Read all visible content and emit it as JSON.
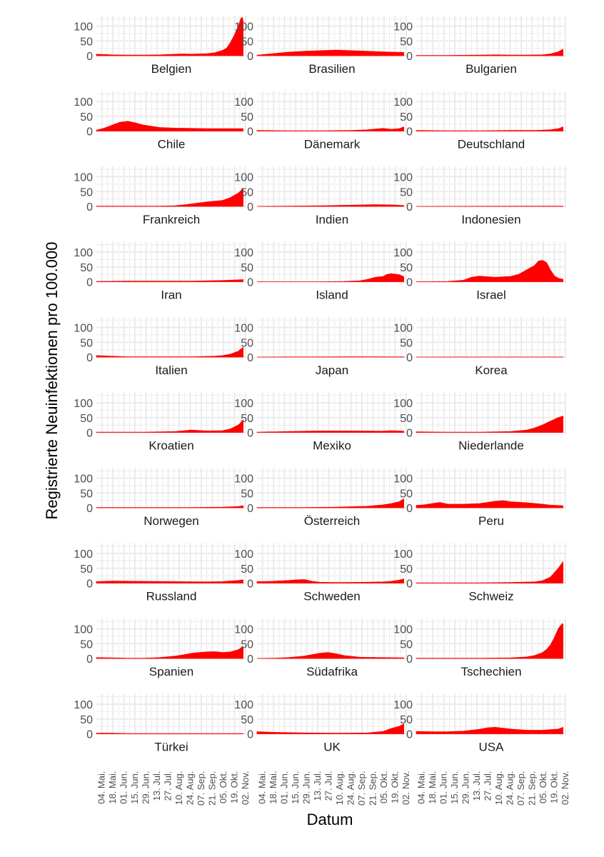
{
  "chart_data": {
    "type": "area",
    "xlabel": "Datum",
    "ylabel": "Registrierte Neuinfektionen pro 100.000",
    "x_start": "2020-04-27",
    "x_end": "2020-11-03",
    "ylim": [
      0,
      135
    ],
    "yticks": [
      0,
      50,
      100
    ],
    "ytick_labels": [
      "0",
      "50",
      "100"
    ],
    "xticks": [
      "04. Mai.",
      "18. Mai.",
      "01. Jun.",
      "15. Jun.",
      "29. Jun.",
      "13. Jul.",
      "27. Jul.",
      "10. Aug.",
      "24. Aug.",
      "07. Sep.",
      "21. Sep.",
      "05. Okt.",
      "19. Okt.",
      "02. Nov."
    ],
    "xtick_days": [
      7,
      21,
      35,
      49,
      63,
      77,
      91,
      105,
      119,
      133,
      147,
      161,
      175,
      189
    ],
    "x_days_domain": [
      0,
      190
    ],
    "colors": {
      "fill": "#ff0000",
      "panel_grid": "#ebebeb"
    },
    "series": [
      {
        "name": "Belgien",
        "x_days": [
          0,
          20,
          40,
          60,
          80,
          100,
          110,
          120,
          140,
          150,
          160,
          165,
          170,
          175,
          180,
          183,
          185,
          186
        ],
        "values": [
          5,
          3,
          2,
          2,
          3,
          5,
          6,
          5,
          7,
          10,
          18,
          25,
          45,
          70,
          100,
          125,
          130,
          115
        ]
      },
      {
        "name": "Brasilien",
        "x_days": [
          0,
          20,
          40,
          60,
          80,
          100,
          120,
          140,
          160,
          186
        ],
        "values": [
          2,
          7,
          12,
          15,
          17,
          19,
          17,
          15,
          13,
          11
        ]
      },
      {
        "name": "Bulgarien",
        "x_days": [
          0,
          40,
          80,
          100,
          120,
          140,
          160,
          170,
          180,
          186
        ],
        "values": [
          1,
          1,
          2,
          3,
          2,
          2,
          3,
          6,
          13,
          22
        ]
      },
      {
        "name": "Chile",
        "x_days": [
          0,
          10,
          20,
          30,
          40,
          50,
          60,
          80,
          100,
          140,
          186
        ],
        "values": [
          3,
          10,
          20,
          30,
          33,
          27,
          20,
          12,
          10,
          8,
          8
        ]
      },
      {
        "name": "Dänemark",
        "x_days": [
          0,
          40,
          80,
          120,
          140,
          150,
          160,
          170,
          180,
          186
        ],
        "values": [
          2,
          1,
          1,
          2,
          4,
          7,
          9,
          6,
          8,
          14
        ]
      },
      {
        "name": "Deutschland",
        "x_days": [
          0,
          40,
          80,
          120,
          150,
          170,
          180,
          186
        ],
        "values": [
          2,
          1,
          1,
          2,
          2,
          4,
          8,
          14
        ]
      },
      {
        "name": "Frankreich",
        "x_days": [
          0,
          40,
          80,
          100,
          120,
          140,
          160,
          170,
          180,
          186
        ],
        "values": [
          1,
          1,
          1,
          2,
          8,
          15,
          20,
          30,
          45,
          60
        ]
      },
      {
        "name": "Indien",
        "x_days": [
          0,
          40,
          80,
          120,
          150,
          170,
          186
        ],
        "values": [
          0,
          1,
          2,
          4,
          6,
          5,
          3
        ]
      },
      {
        "name": "Indonesien",
        "x_days": [
          0,
          100,
          186
        ],
        "values": [
          0,
          0.5,
          1
        ]
      },
      {
        "name": "Iran",
        "x_days": [
          0,
          40,
          80,
          120,
          160,
          186
        ],
        "values": [
          1,
          2,
          2,
          2,
          4,
          7
        ]
      },
      {
        "name": "Island",
        "x_days": [
          0,
          80,
          110,
          130,
          140,
          150,
          160,
          165,
          170,
          180,
          186
        ],
        "values": [
          0,
          0,
          1,
          3,
          8,
          15,
          18,
          25,
          27,
          24,
          17
        ]
      },
      {
        "name": "Israel",
        "x_days": [
          0,
          40,
          60,
          70,
          80,
          100,
          120,
          130,
          140,
          150,
          155,
          160,
          165,
          170,
          175,
          180,
          186
        ],
        "values": [
          0,
          1,
          5,
          15,
          19,
          15,
          18,
          25,
          40,
          55,
          70,
          72,
          65,
          40,
          20,
          12,
          8
        ]
      },
      {
        "name": "Italien",
        "x_days": [
          0,
          20,
          40,
          80,
          120,
          150,
          160,
          170,
          180,
          186
        ],
        "values": [
          5,
          3,
          1,
          1,
          1,
          3,
          5,
          10,
          20,
          33
        ]
      },
      {
        "name": "Japan",
        "x_days": [
          0,
          80,
          120,
          186
        ],
        "values": [
          0,
          0.5,
          1,
          0.5
        ]
      },
      {
        "name": "Korea",
        "x_days": [
          0,
          100,
          186
        ],
        "values": [
          0,
          0.3,
          0.3
        ]
      },
      {
        "name": "Kroatien",
        "x_days": [
          0,
          60,
          100,
          120,
          140,
          160,
          170,
          180,
          186
        ],
        "values": [
          1,
          1,
          3,
          8,
          5,
          6,
          12,
          25,
          42
        ]
      },
      {
        "name": "Mexiko",
        "x_days": [
          0,
          40,
          80,
          120,
          160,
          170,
          186
        ],
        "values": [
          1,
          3,
          5,
          5,
          4,
          6,
          4
        ]
      },
      {
        "name": "Niederlande",
        "x_days": [
          0,
          40,
          80,
          120,
          140,
          150,
          160,
          170,
          180,
          186
        ],
        "values": [
          2,
          1,
          1,
          3,
          8,
          15,
          25,
          38,
          50,
          55
        ]
      },
      {
        "name": "Norwegen",
        "x_days": [
          0,
          80,
          120,
          160,
          180,
          186
        ],
        "values": [
          1,
          1,
          1,
          2,
          4,
          7
        ]
      },
      {
        "name": "Österreich",
        "x_days": [
          0,
          60,
          100,
          140,
          160,
          170,
          180,
          186
        ],
        "values": [
          1,
          1,
          2,
          5,
          10,
          14,
          20,
          30
        ]
      },
      {
        "name": "Peru",
        "x_days": [
          0,
          10,
          20,
          30,
          40,
          60,
          80,
          100,
          110,
          120,
          140,
          160,
          170,
          186
        ],
        "values": [
          8,
          10,
          14,
          18,
          12,
          12,
          14,
          22,
          24,
          20,
          17,
          12,
          9,
          7
        ]
      },
      {
        "name": "Russland",
        "x_days": [
          0,
          20,
          60,
          100,
          140,
          160,
          180,
          186
        ],
        "values": [
          5,
          7,
          6,
          5,
          4,
          5,
          9,
          11
        ]
      },
      {
        "name": "Schweden",
        "x_days": [
          0,
          20,
          40,
          50,
          60,
          70,
          80,
          100,
          140,
          160,
          170,
          180,
          186
        ],
        "values": [
          5,
          6,
          9,
          11,
          12,
          6,
          3,
          2,
          3,
          4,
          6,
          10,
          14
        ]
      },
      {
        "name": "Schweiz",
        "x_days": [
          0,
          40,
          80,
          120,
          150,
          160,
          170,
          175,
          180,
          186
        ],
        "values": [
          1,
          1,
          1,
          2,
          4,
          8,
          20,
          35,
          50,
          72
        ]
      },
      {
        "name": "Spanien",
        "x_days": [
          0,
          20,
          40,
          60,
          80,
          100,
          110,
          120,
          130,
          140,
          150,
          160,
          170,
          180,
          186
        ],
        "values": [
          3,
          2,
          1,
          1,
          3,
          8,
          12,
          17,
          20,
          22,
          23,
          20,
          22,
          30,
          40
        ]
      },
      {
        "name": "Südafrika",
        "x_days": [
          0,
          20,
          40,
          60,
          70,
          80,
          90,
          100,
          110,
          130,
          160,
          186
        ],
        "values": [
          0,
          1,
          3,
          8,
          13,
          18,
          20,
          16,
          10,
          4,
          3,
          2
        ]
      },
      {
        "name": "Tschechien",
        "x_days": [
          0,
          40,
          80,
          120,
          140,
          150,
          160,
          165,
          170,
          175,
          180,
          185,
          186
        ],
        "values": [
          1,
          1,
          1,
          2,
          5,
          10,
          20,
          30,
          45,
          70,
          100,
          118,
          115
        ]
      },
      {
        "name": "Türkei",
        "x_days": [
          0,
          20,
          40,
          80,
          120,
          160,
          186
        ],
        "values": [
          2,
          2,
          1,
          1,
          1,
          1,
          1
        ]
      },
      {
        "name": "UK",
        "x_days": [
          0,
          20,
          60,
          100,
          140,
          160,
          170,
          180,
          186
        ],
        "values": [
          7,
          5,
          3,
          2,
          3,
          8,
          18,
          25,
          33
        ]
      },
      {
        "name": "USA",
        "x_days": [
          0,
          20,
          40,
          60,
          80,
          90,
          100,
          120,
          140,
          160,
          170,
          180,
          186
        ],
        "values": [
          8,
          7,
          7,
          9,
          15,
          20,
          22,
          16,
          12,
          12,
          14,
          16,
          22
        ]
      }
    ]
  }
}
